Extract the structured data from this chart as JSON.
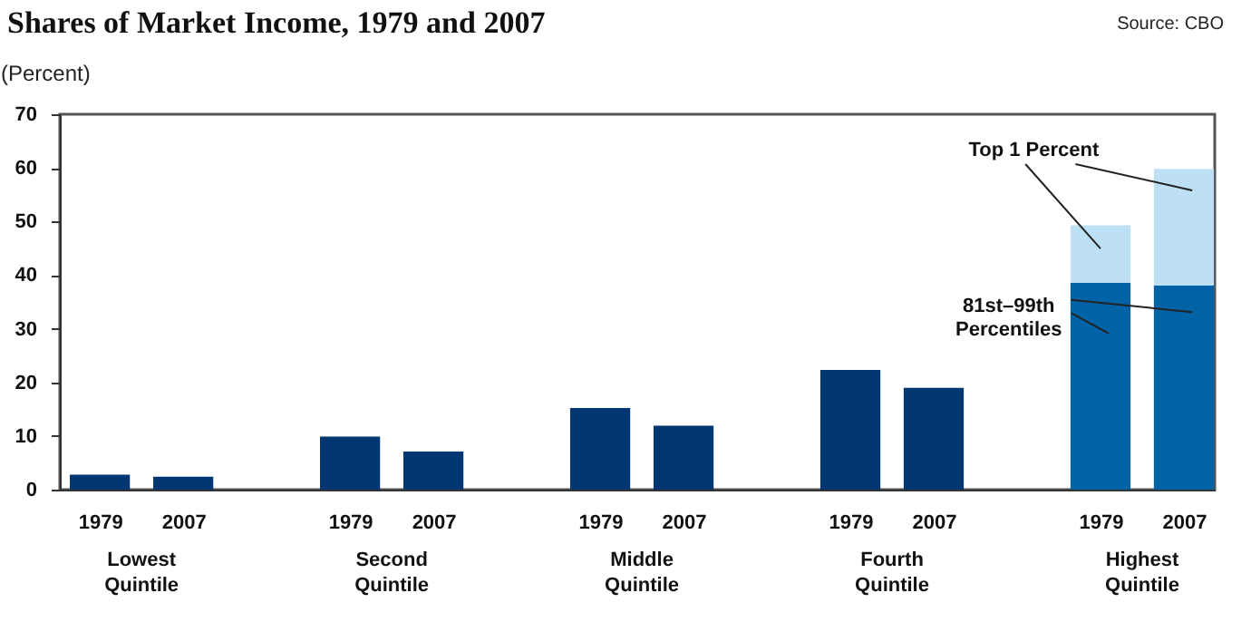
{
  "chart_data": {
    "type": "bar",
    "title": "Shares of Market Income, 1979 and 2007",
    "ylabel": "(Percent)",
    "annotations": [
      "Source: CBO",
      "Lowest Quintile",
      "Second Quintile",
      "Middle Quintile",
      "Fourth Quintile",
      "Highest Quintile"
    ],
    "categories": [
      "1979",
      "2007",
      "1979",
      "2007",
      "1979",
      "2007",
      "1979",
      "2007",
      "1979",
      "2007"
    ],
    "stacked": true,
    "series": [
      {
        "color": "#003671",
        "values": [
          2.8,
          2.4,
          9.9,
          7.1,
          15.2,
          11.9,
          22.3,
          19.0,
          null,
          null
        ]
      },
      {
        "name": "81st–99th Percentiles",
        "color": "#0063a6",
        "values": [
          null,
          null,
          null,
          null,
          null,
          null,
          null,
          null,
          38.6,
          38.1
        ]
      },
      {
        "name": "Top 1 Percent",
        "color": "#bde0f5",
        "values": [
          null,
          null,
          null,
          null,
          null,
          null,
          null,
          null,
          10.7,
          21.7
        ]
      }
    ],
    "ylim": [
      0,
      70
    ],
    "yticks": [
      0,
      10,
      20,
      30,
      40,
      50,
      60,
      70
    ],
    "grid": false,
    "legend": false
  }
}
